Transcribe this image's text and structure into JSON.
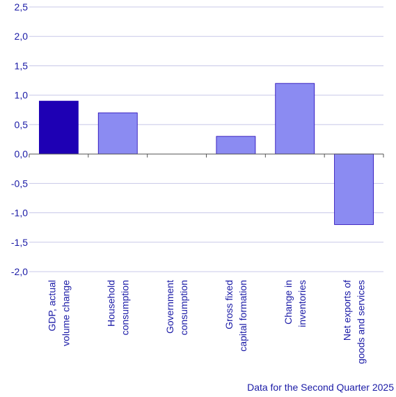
{
  "chart_data": {
    "type": "bar",
    "categories": [
      [
        "GDP, actual",
        "volume change"
      ],
      [
        "Household",
        "consumption"
      ],
      [
        "Government",
        "consumption"
      ],
      [
        "Gross fixed",
        "capital formation"
      ],
      [
        "Change in",
        "inventories"
      ],
      [
        "Net exports of",
        "goods and services"
      ]
    ],
    "values": [
      0.9,
      0.7,
      0.0,
      0.3,
      1.2,
      -1.2
    ],
    "ylim": [
      -2.0,
      2.5
    ],
    "yticks": [
      2.5,
      2.0,
      1.5,
      1.0,
      0.5,
      0.0,
      -0.5,
      -1.0,
      -1.5,
      -2.0
    ],
    "ytick_labels": [
      "2,5",
      "2,0",
      "1,5",
      "1,0",
      "0,5",
      "0,0",
      "-0,5",
      "-1,0",
      "-1,5",
      "-2,0"
    ],
    "grid": true,
    "xlabel": "",
    "ylabel": "",
    "colors": {
      "highlight": "#1e00b4",
      "bar": "#8b8bf2",
      "grid": "#c8c8e8",
      "axis": "#555555",
      "text": "#1a1aa6"
    }
  },
  "footnote": "Data for the Second Quarter 2025"
}
